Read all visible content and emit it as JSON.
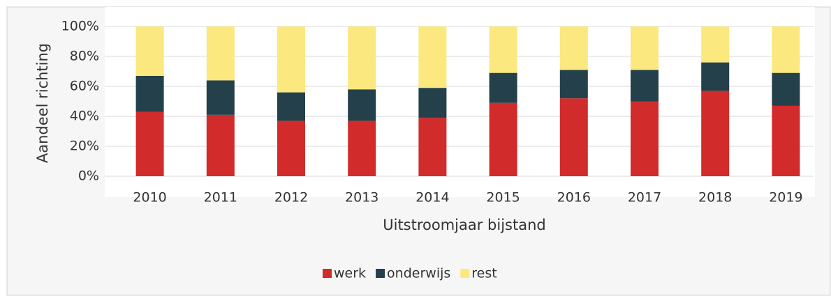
{
  "chart_data": {
    "type": "stacked_bar",
    "categories": [
      "2010",
      "2011",
      "2012",
      "2013",
      "2014",
      "2015",
      "2016",
      "2017",
      "2018",
      "2019"
    ],
    "series": [
      {
        "name": "werk",
        "color": "#d22b2b",
        "values": [
          43,
          41,
          37,
          37,
          39,
          49,
          52,
          50,
          57,
          47
        ]
      },
      {
        "name": "onderwijs",
        "color": "#24404a",
        "values": [
          24,
          23,
          19,
          21,
          20,
          20,
          19,
          21,
          19,
          22
        ]
      },
      {
        "name": "rest",
        "color": "#fbe87e",
        "values": [
          33,
          36,
          44,
          42,
          41,
          31,
          29,
          29,
          24,
          31
        ]
      }
    ],
    "xlabel": "Uitstroomjaar bijstand",
    "ylabel": "Aandeel richting",
    "ylim": [
      0,
      100
    ],
    "yticks": [
      {
        "value": 0,
        "label": "0%"
      },
      {
        "value": 20,
        "label": "20%"
      },
      {
        "value": 40,
        "label": "40%"
      },
      {
        "value": 60,
        "label": "60%"
      },
      {
        "value": 80,
        "label": "80%"
      },
      {
        "value": 100,
        "label": "100%"
      }
    ],
    "grid": true,
    "legend": "bottom"
  }
}
